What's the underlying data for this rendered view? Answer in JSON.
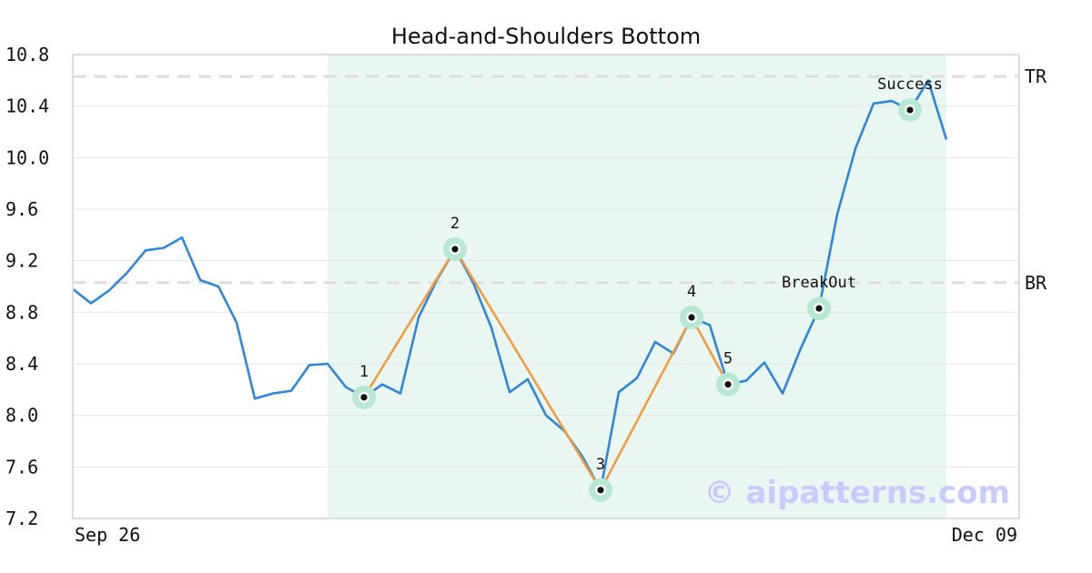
{
  "chart_data": {
    "type": "line",
    "title": "Head-and-Shoulders Bottom",
    "xlabel": "",
    "ylabel": "",
    "x_tick_labels": [
      "Sep 26",
      "Dec 09"
    ],
    "y_ticks": [
      7.2,
      7.6,
      8.0,
      8.4,
      8.8,
      9.2,
      9.6,
      10.0,
      10.4,
      10.8
    ],
    "ylim": [
      7.2,
      10.8
    ],
    "grid": "horizontal",
    "colors": {
      "price": "#2e86de",
      "pattern": "#f39c3c",
      "marker_halo": "#b6e8d3",
      "highlight": "#eaf6f1",
      "reference": "#dddddd",
      "watermark": "#c9cbff"
    },
    "series": [
      {
        "role": "price",
        "values": [
          8.98,
          8.87,
          8.97,
          9.11,
          9.28,
          9.3,
          9.38,
          9.05,
          9.0,
          8.72,
          8.13,
          8.17,
          8.19,
          8.39,
          8.4,
          8.22,
          8.14,
          8.24,
          8.17,
          8.76,
          9.05,
          9.29,
          9.03,
          8.68,
          8.18,
          8.28,
          8.0,
          7.88,
          7.68,
          7.42,
          8.18,
          8.29,
          8.57,
          8.48,
          8.76,
          8.7,
          8.24,
          8.27,
          8.41,
          8.17,
          8.52,
          8.83,
          9.56,
          10.07,
          10.42,
          10.44,
          10.37,
          10.6,
          10.14
        ]
      }
    ],
    "pattern_points": [
      {
        "label": "1",
        "index": 16,
        "value": 8.14
      },
      {
        "label": "2",
        "index": 21,
        "value": 9.29
      },
      {
        "label": "3",
        "index": 29,
        "value": 7.42
      },
      {
        "label": "4",
        "index": 34,
        "value": 8.76
      },
      {
        "label": "5",
        "index": 36,
        "value": 8.24
      }
    ],
    "events": [
      {
        "label": "BreakOut",
        "index": 41,
        "value": 8.83
      },
      {
        "label": "Success",
        "index": 46,
        "value": 10.37
      }
    ],
    "reference_lines": [
      {
        "label": "TR",
        "value": 10.63
      },
      {
        "label": "BR",
        "value": 9.03
      }
    ],
    "highlight_range": [
      14,
      48
    ],
    "watermark": "© aipatterns.com"
  }
}
